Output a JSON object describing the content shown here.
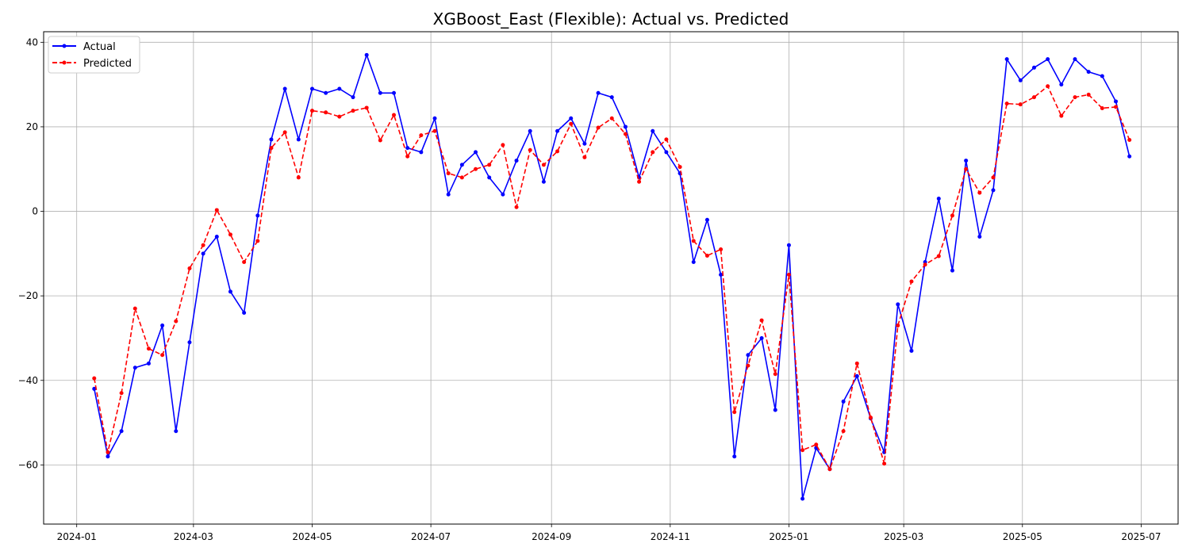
{
  "chart_data": {
    "type": "line",
    "title": "XGBoost_East (Flexible): Actual vs. Predicted",
    "xlabel": "",
    "ylabel": "",
    "x_range": [
      "2023-12-15",
      "2025-07-20"
    ],
    "ylim": [
      -74,
      42.5
    ],
    "grid": true,
    "legend_position": "top-left",
    "x_ticks": [
      {
        "date": "2024-01-01",
        "label": "2024-01"
      },
      {
        "date": "2024-03-01",
        "label": "2024-03"
      },
      {
        "date": "2024-05-01",
        "label": "2024-05"
      },
      {
        "date": "2024-07-01",
        "label": "2024-07"
      },
      {
        "date": "2024-09-01",
        "label": "2024-09"
      },
      {
        "date": "2024-11-01",
        "label": "2024-11"
      },
      {
        "date": "2025-01-01",
        "label": "2025-01"
      },
      {
        "date": "2025-03-01",
        "label": "2025-03"
      },
      {
        "date": "2025-05-01",
        "label": "2025-05"
      },
      {
        "date": "2025-07-01",
        "label": "2025-07"
      }
    ],
    "y_ticks": [
      {
        "value": 40,
        "label": "40"
      },
      {
        "value": 20,
        "label": "20"
      },
      {
        "value": 0,
        "label": "0"
      },
      {
        "value": -20,
        "label": "−20"
      },
      {
        "value": -40,
        "label": "−40"
      },
      {
        "value": -60,
        "label": "−60"
      }
    ],
    "x": [
      "2024-01-10",
      "2024-01-17",
      "2024-01-24",
      "2024-01-31",
      "2024-02-07",
      "2024-02-14",
      "2024-02-21",
      "2024-02-28",
      "2024-03-06",
      "2024-03-13",
      "2024-03-20",
      "2024-03-27",
      "2024-04-03",
      "2024-04-10",
      "2024-04-17",
      "2024-04-24",
      "2024-05-01",
      "2024-05-08",
      "2024-05-15",
      "2024-05-22",
      "2024-05-29",
      "2024-06-05",
      "2024-06-12",
      "2024-06-19",
      "2024-06-26",
      "2024-07-03",
      "2024-07-10",
      "2024-07-17",
      "2024-07-24",
      "2024-07-31",
      "2024-08-07",
      "2024-08-14",
      "2024-08-21",
      "2024-08-28",
      "2024-09-04",
      "2024-09-11",
      "2024-09-18",
      "2024-09-25",
      "2024-10-02",
      "2024-10-09",
      "2024-10-16",
      "2024-10-23",
      "2024-10-30",
      "2024-11-06",
      "2024-11-13",
      "2024-11-20",
      "2024-11-27",
      "2024-12-04",
      "2024-12-11",
      "2024-12-18",
      "2024-12-25",
      "2025-01-01",
      "2025-01-08",
      "2025-01-15",
      "2025-01-22",
      "2025-01-29",
      "2025-02-05",
      "2025-02-12",
      "2025-02-19",
      "2025-02-26",
      "2025-03-05",
      "2025-03-12",
      "2025-03-19",
      "2025-03-26",
      "2025-04-02",
      "2025-04-09",
      "2025-04-16",
      "2025-04-23",
      "2025-04-30",
      "2025-05-07",
      "2025-05-14",
      "2025-05-21",
      "2025-05-28",
      "2025-06-04",
      "2025-06-11",
      "2025-06-18",
      "2025-06-25"
    ],
    "series": [
      {
        "name": "Actual",
        "color": "#0000ff",
        "style": "solid",
        "values": [
          -42,
          -58,
          -52,
          -37,
          -36,
          -27,
          -52,
          -31,
          -10,
          -6,
          -19,
          -24,
          -1,
          17,
          29,
          17,
          29,
          28,
          29,
          27,
          37,
          28,
          28,
          15,
          14,
          22,
          4,
          11,
          14,
          8,
          4,
          12,
          19,
          7,
          19,
          22,
          16,
          28,
          27,
          20,
          8,
          19,
          14,
          9,
          -12,
          -2,
          -15,
          -58,
          -34,
          -30,
          -47,
          -8,
          -68,
          -56,
          -61,
          -45,
          -39,
          -49,
          -57,
          -22,
          -33,
          -12,
          3,
          -14,
          12,
          -6,
          5,
          36,
          31,
          34,
          36,
          30,
          36,
          33,
          32,
          26,
          13
        ]
      },
      {
        "name": "Predicted",
        "color": "#ff0000",
        "style": "dashed",
        "values": [
          -39.5,
          -57,
          -43,
          -23,
          -32.5,
          -34,
          -26,
          -13.5,
          -8,
          0.3,
          -5.5,
          -12,
          -7,
          15,
          18.7,
          8,
          23.8,
          23.4,
          22.4,
          23.8,
          24.5,
          16.8,
          22.8,
          13,
          18,
          19,
          9,
          8,
          10,
          11,
          15.7,
          1,
          14.5,
          11,
          14.2,
          20.7,
          12.8,
          19.8,
          22,
          18.3,
          7,
          14,
          17,
          10.5,
          -7,
          -10.5,
          -9,
          -47.5,
          -36.5,
          -25.8,
          -38.5,
          -15,
          -56.5,
          -55.2,
          -61,
          -52,
          -36,
          -48.8,
          -59.7,
          -27,
          -16.6,
          -12.6,
          -10.6,
          -1,
          10,
          4.4,
          8,
          25.5,
          25.3,
          27,
          29.6,
          22.6,
          27,
          27.6,
          24.4,
          24.7,
          16.9
        ]
      }
    ]
  }
}
